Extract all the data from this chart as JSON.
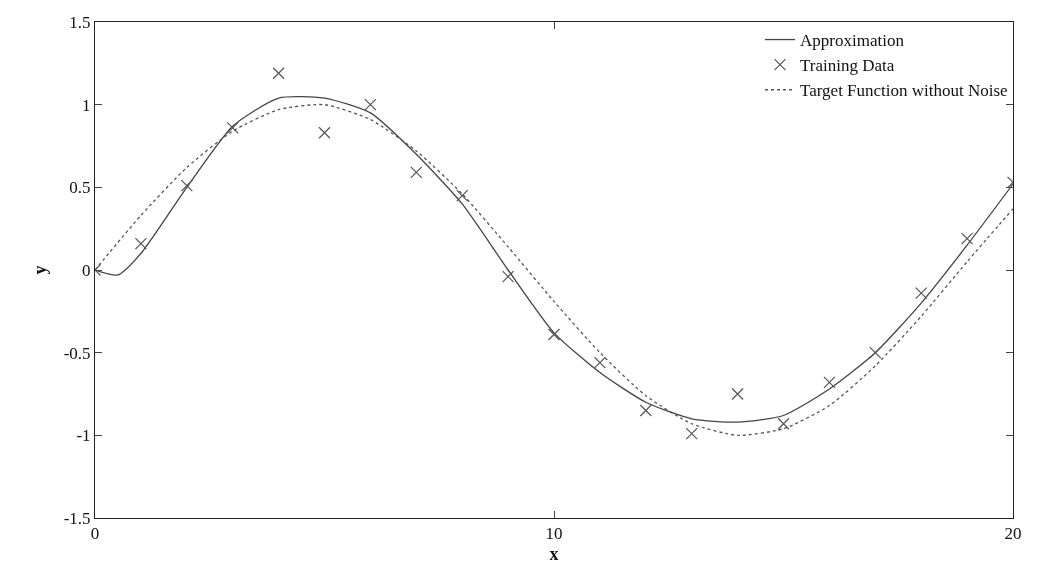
{
  "chart_data": {
    "type": "line",
    "xlabel": "x",
    "ylabel": "y",
    "xlim": [
      0,
      20
    ],
    "xticks": [
      0,
      10,
      20
    ],
    "ylim": [
      -1.5,
      1.5
    ],
    "yticks": [
      -1.5,
      -1,
      -0.5,
      0,
      0.5,
      1,
      1.5
    ],
    "grid": false,
    "legend": "top right",
    "series": [
      {
        "name": "Approximation",
        "line_style": "solid",
        "color": "#444444",
        "x": [
          0,
          0.5,
          1,
          2,
          3,
          4,
          5,
          6,
          7,
          8,
          9,
          10,
          11,
          12,
          13,
          14,
          15,
          16,
          17,
          18,
          19,
          20
        ],
        "values": [
          0,
          -0.03,
          0.1,
          0.5,
          0.87,
          1.04,
          1.04,
          0.95,
          0.7,
          0.4,
          0,
          -0.38,
          -0.62,
          -0.8,
          -0.9,
          -0.92,
          -0.88,
          -0.72,
          -0.5,
          -0.2,
          0.15,
          0.52
        ]
      },
      {
        "name": "Training Data",
        "type": "scatter",
        "marker": "cross",
        "color": "#555555",
        "x": [
          0,
          1,
          2,
          3,
          4,
          5,
          6,
          7,
          8,
          9,
          10,
          11,
          12,
          13,
          14,
          15,
          16,
          17,
          18,
          19,
          20
        ],
        "values": [
          0,
          0.16,
          0.51,
          0.86,
          1.19,
          0.83,
          1.0,
          0.59,
          0.45,
          -0.04,
          -0.39,
          -0.56,
          -0.85,
          -0.99,
          -0.75,
          -0.93,
          -0.68,
          -0.5,
          -0.14,
          0.19,
          0.53
        ]
      },
      {
        "name": "Target Function without Noise",
        "line_style": "dotted",
        "color": "#555555",
        "x": [
          0,
          1,
          2,
          3,
          4,
          5,
          6,
          7,
          8,
          9,
          10,
          11,
          12,
          13,
          14,
          15,
          16,
          17,
          18,
          19,
          20
        ],
        "values": [
          0,
          0.33,
          0.62,
          0.84,
          0.97,
          1.0,
          0.91,
          0.72,
          0.46,
          0.14,
          -0.19,
          -0.5,
          -0.76,
          -0.93,
          -1.0,
          -0.96,
          -0.82,
          -0.58,
          -0.28,
          0.05,
          0.37
        ]
      }
    ]
  }
}
